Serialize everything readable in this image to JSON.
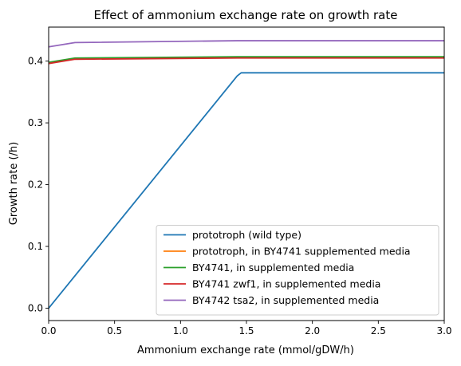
{
  "chart_data": {
    "type": "line",
    "title": "Effect of ammonium exchange rate on growth rate",
    "xlabel": "Ammonium exchange rate (mmol/gDW/h)",
    "ylabel": "Growth rate (/h)",
    "xlim": [
      0,
      3.0
    ],
    "ylim": [
      -0.02,
      0.455
    ],
    "xticks": [
      0.0,
      0.5,
      1.0,
      1.5,
      2.0,
      2.5,
      3.0
    ],
    "xtick_labels": [
      "0.0",
      "0.5",
      "1.0",
      "1.5",
      "2.0",
      "2.5",
      "3.0"
    ],
    "yticks": [
      0.0,
      0.1,
      0.2,
      0.3,
      0.4
    ],
    "ytick_labels": [
      "0.0",
      "0.1",
      "0.2",
      "0.3",
      "0.4"
    ],
    "grid": false,
    "legend_position": "lower-right",
    "series": [
      {
        "name": "prototroph (wild type)",
        "color": "#1f77b4",
        "x": [
          0,
          1.43,
          1.46,
          3.0
        ],
        "y": [
          0.0,
          0.376,
          0.381,
          0.381
        ]
      },
      {
        "name": "prototroph, in BY4741 supplemented media",
        "color": "#ff7f0e",
        "x": [
          0,
          0.2,
          1.43,
          3.0
        ],
        "y": [
          0.397,
          0.404,
          0.406,
          0.406
        ]
      },
      {
        "name": "BY4741, in supplemented media",
        "color": "#2ca02c",
        "x": [
          0,
          0.2,
          1.43,
          3.0
        ],
        "y": [
          0.398,
          0.405,
          0.407,
          0.407
        ]
      },
      {
        "name": "BY4741 zwf1, in supplemented media",
        "color": "#d62728",
        "x": [
          0,
          0.2,
          1.43,
          3.0
        ],
        "y": [
          0.396,
          0.403,
          0.405,
          0.405
        ]
      },
      {
        "name": "BY4742 tsa2, in supplemented media",
        "color": "#9467bd",
        "x": [
          0,
          0.2,
          1.43,
          3.0
        ],
        "y": [
          0.423,
          0.43,
          0.433,
          0.433
        ]
      }
    ]
  }
}
